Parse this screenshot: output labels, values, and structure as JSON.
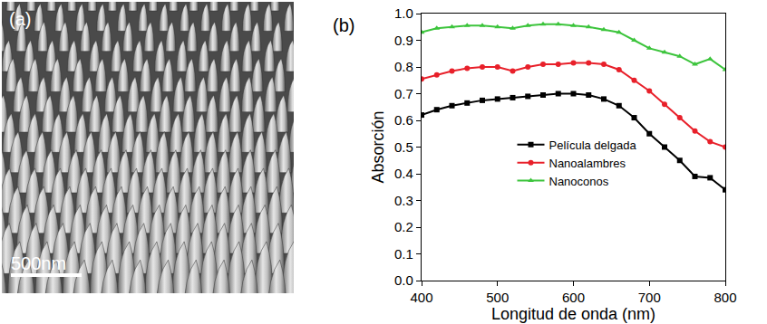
{
  "image_panel": {
    "label": "(a)",
    "scale_bar": "500nm"
  },
  "chart_data": {
    "type": "line",
    "panel_label": "(b)",
    "x_label": "Longitud de onda (nm)",
    "y_label": "Absorción",
    "x": [
      400,
      420,
      440,
      460,
      480,
      500,
      520,
      540,
      560,
      580,
      600,
      620,
      640,
      660,
      680,
      700,
      720,
      740,
      760,
      780,
      800
    ],
    "series": [
      {
        "name": "Película delgada",
        "color": "#000000",
        "marker": "square",
        "values": [
          0.62,
          0.64,
          0.655,
          0.665,
          0.675,
          0.68,
          0.685,
          0.69,
          0.695,
          0.7,
          0.7,
          0.695,
          0.68,
          0.655,
          0.61,
          0.55,
          0.5,
          0.45,
          0.39,
          0.385,
          0.34
        ]
      },
      {
        "name": "Nanoalambres",
        "color": "#e8202a",
        "marker": "circle",
        "values": [
          0.755,
          0.77,
          0.785,
          0.795,
          0.8,
          0.8,
          0.785,
          0.8,
          0.81,
          0.81,
          0.815,
          0.815,
          0.81,
          0.79,
          0.75,
          0.71,
          0.66,
          0.61,
          0.56,
          0.52,
          0.5
        ]
      },
      {
        "name": "Nanoconos",
        "color": "#3cc43c",
        "marker": "triangle-up",
        "values": [
          0.93,
          0.945,
          0.95,
          0.955,
          0.955,
          0.95,
          0.945,
          0.955,
          0.96,
          0.96,
          0.955,
          0.95,
          0.94,
          0.93,
          0.9,
          0.87,
          0.855,
          0.84,
          0.81,
          0.83,
          0.79
        ]
      }
    ],
    "xlim": [
      400,
      800
    ],
    "xticks": [
      400,
      500,
      600,
      700,
      800
    ],
    "ylim": [
      0,
      1
    ],
    "yticks": [
      {
        "value": 0,
        "label": "0.0"
      },
      {
        "value": 0.1,
        "label": "0.1"
      },
      {
        "value": 0.2,
        "label": "0.2"
      },
      {
        "value": 0.3,
        "label": "0.3"
      },
      {
        "value": 0.4,
        "label": "0.4"
      },
      {
        "value": 0.5,
        "label": "0.5"
      },
      {
        "value": 0.6,
        "label": "0.6"
      },
      {
        "value": 0.7,
        "label": "0.7"
      },
      {
        "value": 0.8,
        "label": "0.8"
      },
      {
        "value": 0.9,
        "label": "0.9"
      },
      {
        "value": 1,
        "label": "1.0"
      }
    ],
    "grid": false,
    "legend": "center"
  }
}
